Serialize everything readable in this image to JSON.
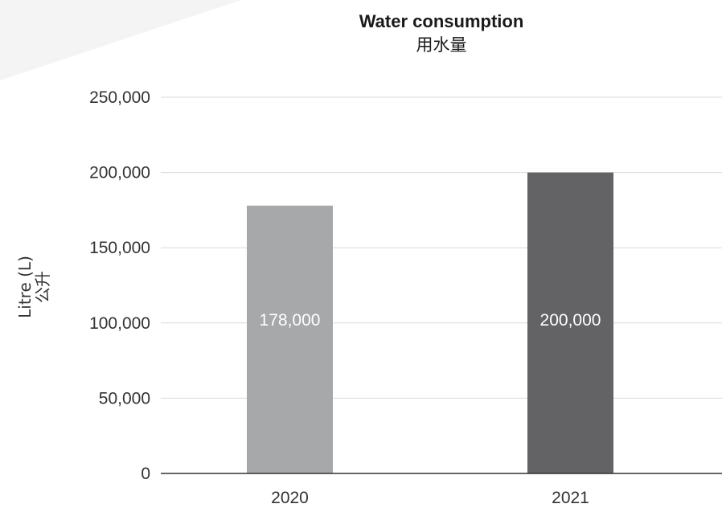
{
  "chart_data": {
    "type": "bar",
    "title": "Water consumption",
    "subtitle": "用水量",
    "xlabel": "",
    "ylabel": "Litre (L)",
    "ylabel_secondary": "公升",
    "categories": [
      "2020",
      "2021"
    ],
    "values": [
      178000,
      200000
    ],
    "data_labels": [
      "178,000",
      "200,000"
    ],
    "ylim": [
      0,
      250000
    ],
    "yticks": [
      0,
      50000,
      100000,
      150000,
      200000,
      250000
    ],
    "ytick_labels": [
      "0",
      "50,000",
      "100,000",
      "150,000",
      "200,000",
      "250,000"
    ],
    "grid": true,
    "legend": "none",
    "bar_colors": [
      "#a7a8aa",
      "#636365"
    ],
    "grid_color": "#d9d9d9",
    "axis_color": "#333333"
  }
}
